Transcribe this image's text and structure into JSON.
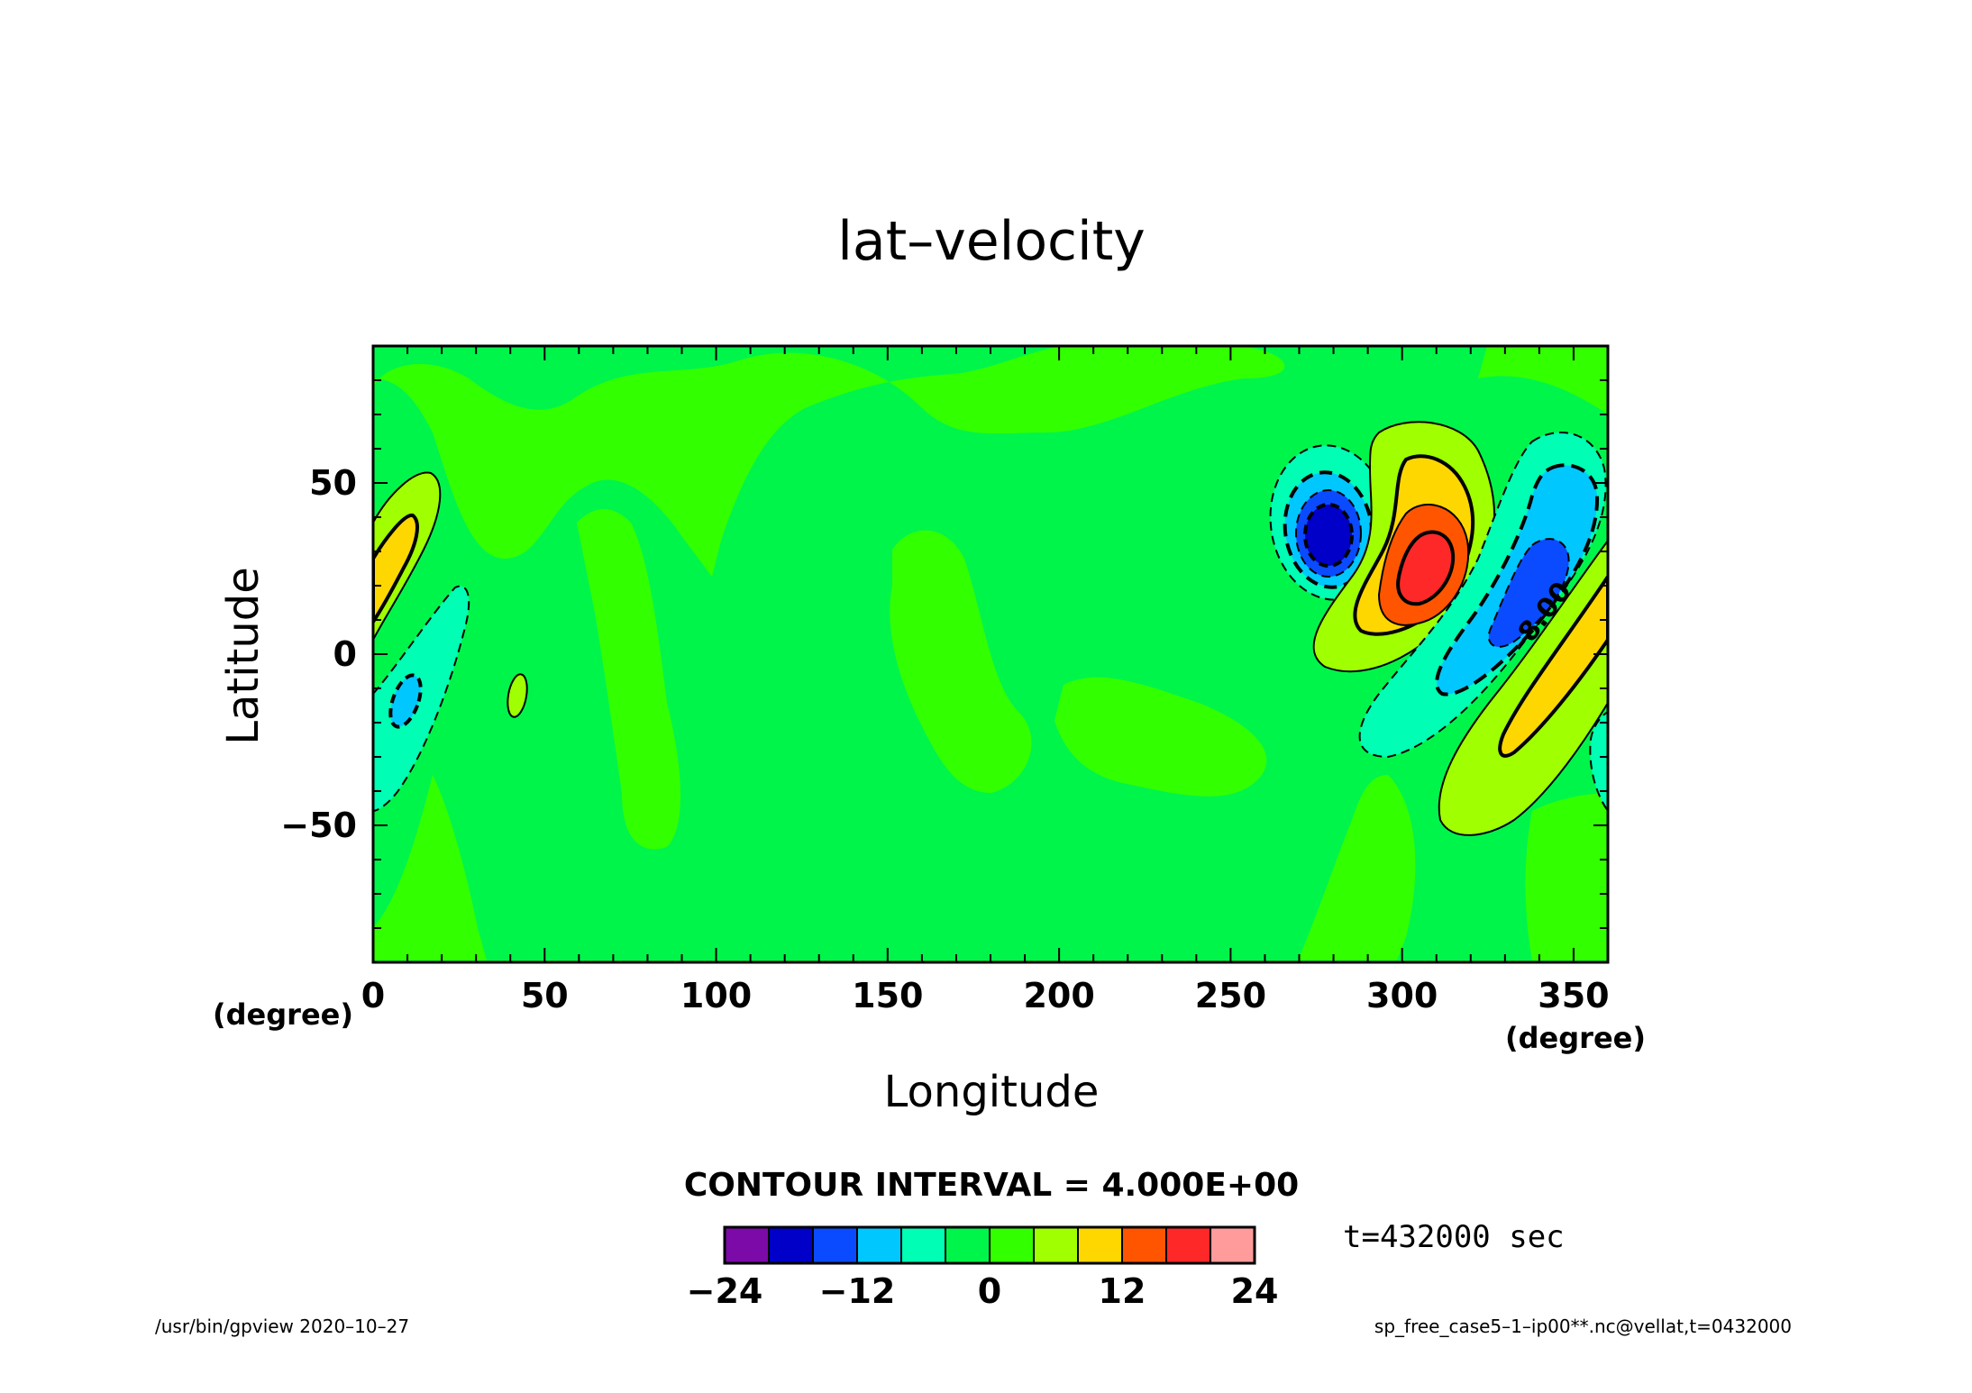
{
  "chart_data": {
    "type": "heatmap",
    "title": "lat–velocity",
    "xlabel": "Longitude",
    "ylabel": "Latitude",
    "x_unit": "(degree)",
    "y_unit": "(degree)",
    "xlim": [
      0,
      360
    ],
    "ylim": [
      -90,
      90
    ],
    "x_ticks": [
      0,
      50,
      100,
      150,
      200,
      250,
      300,
      350
    ],
    "x_tick_labels": [
      "0",
      "50",
      "100",
      "150",
      "200",
      "250",
      "300",
      "350"
    ],
    "y_ticks": [
      -50,
      0,
      50
    ],
    "y_tick_labels": [
      "−50",
      "0",
      "50"
    ],
    "contour_interval_label": "CONTOUR INTERVAL = 4.000E+00",
    "contour_labels": [
      {
        "text": "-8.00",
        "lon": 335,
        "lat": 18
      }
    ],
    "color_levels": [
      -24,
      -20,
      -16,
      -12,
      -8,
      -4,
      0,
      4,
      8,
      12,
      16,
      20,
      24
    ],
    "colorbar_tick_values": [
      -24,
      -12,
      0,
      12,
      24
    ],
    "colorbar_tick_labels": [
      "−24",
      "−12",
      "0",
      "12",
      "24"
    ],
    "colors": [
      "#7b0aa8",
      "#0000c8",
      "#0a4bff",
      "#00c8ff",
      "#00ffb4",
      "#00f54b",
      "#32ff00",
      "#a0ff00",
      "#ffd700",
      "#ff5500",
      "#ff2828",
      "#ff9b9b"
    ],
    "features": [
      {
        "lon": 278,
        "lat": 35,
        "value": -22,
        "sign": "negative"
      },
      {
        "lon": 307,
        "lat": 25,
        "value": 19,
        "sign": "positive"
      },
      {
        "lon": 335,
        "lat": 15,
        "value": -15,
        "sign": "negative"
      },
      {
        "lon": 350,
        "lat": -5,
        "value": 13,
        "sign": "positive"
      },
      {
        "lon": 8,
        "lat": 25,
        "value": 11,
        "sign": "positive"
      },
      {
        "lon": 10,
        "lat": -15,
        "value": -9,
        "sign": "negative"
      },
      {
        "lon": 42,
        "lat": -12,
        "value": 4,
        "sign": "positive"
      }
    ],
    "time_label": "t=432000 sec",
    "footer_left": "/usr/bin/gpview   2020–10–27",
    "footer_right": "sp_free_case5–1–ip00**.nc@vellat,t=0432000"
  }
}
